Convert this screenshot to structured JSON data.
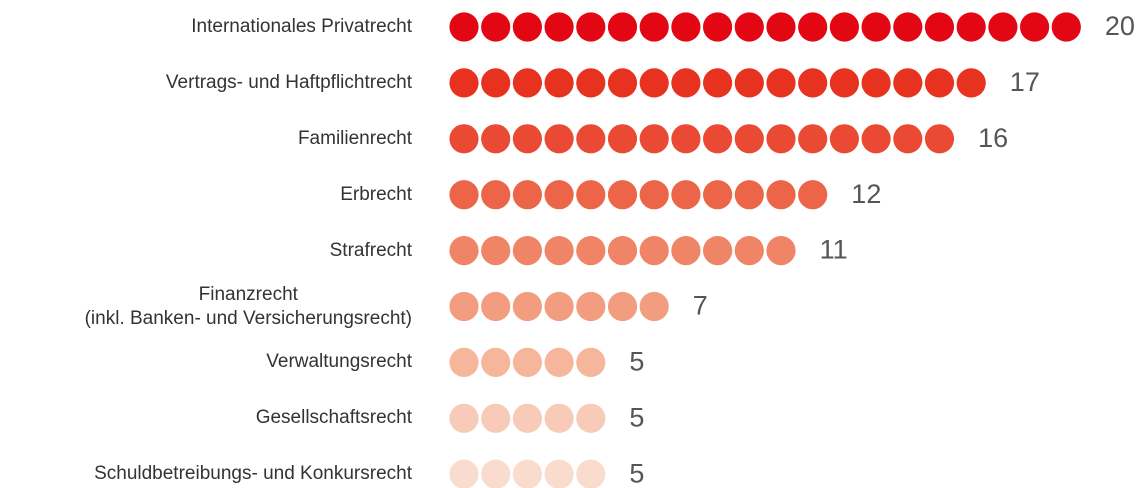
{
  "chart_data": {
    "type": "dot",
    "categories": [
      "Internationales Privatrecht",
      "Vertrags- und Haftpflichtrecht",
      "Familienrecht",
      "Erbrecht",
      "Strafrecht",
      "Finanzrecht\n(inkl. Banken- und Versicherungsrecht)",
      "Verwaltungsrecht",
      "Gesellschaftsrecht",
      "Schuldbetreibungs- und Konkursrecht"
    ],
    "values": [
      20,
      17,
      16,
      12,
      11,
      7,
      5,
      5,
      5
    ],
    "colors": [
      "#e30613",
      "#e7321f",
      "#ea4a33",
      "#ec6548",
      "#ef8466",
      "#f29d7f",
      "#f5b69c",
      "#f7cbb7",
      "#f9dccd"
    ]
  }
}
